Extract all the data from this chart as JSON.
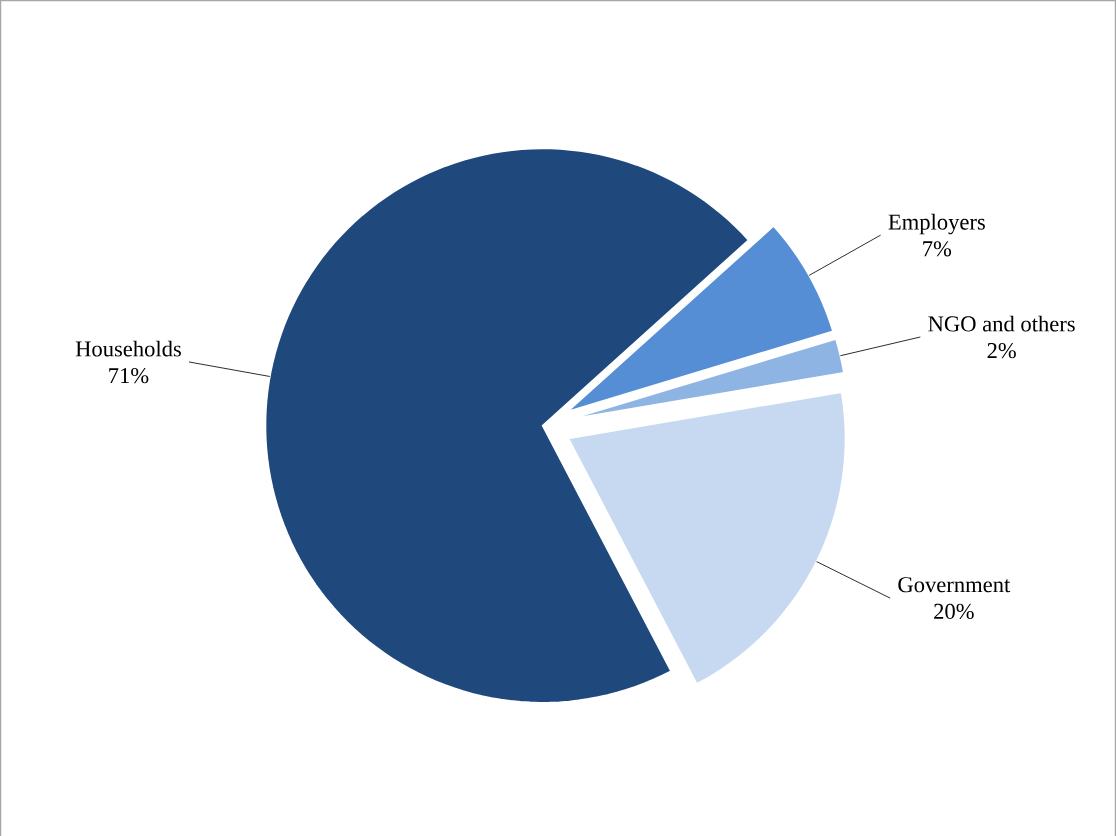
{
  "chart_data": {
    "type": "pie",
    "categories": [
      "Employers",
      "NGO and others",
      "Government",
      "Households"
    ],
    "values": [
      7,
      2,
      20,
      71
    ],
    "colors": [
      "#558ed5",
      "#8eb4e3",
      "#c6d9f1",
      "#1f497d"
    ],
    "value_labels": [
      "7%",
      "2%",
      "20%",
      "71%"
    ]
  }
}
